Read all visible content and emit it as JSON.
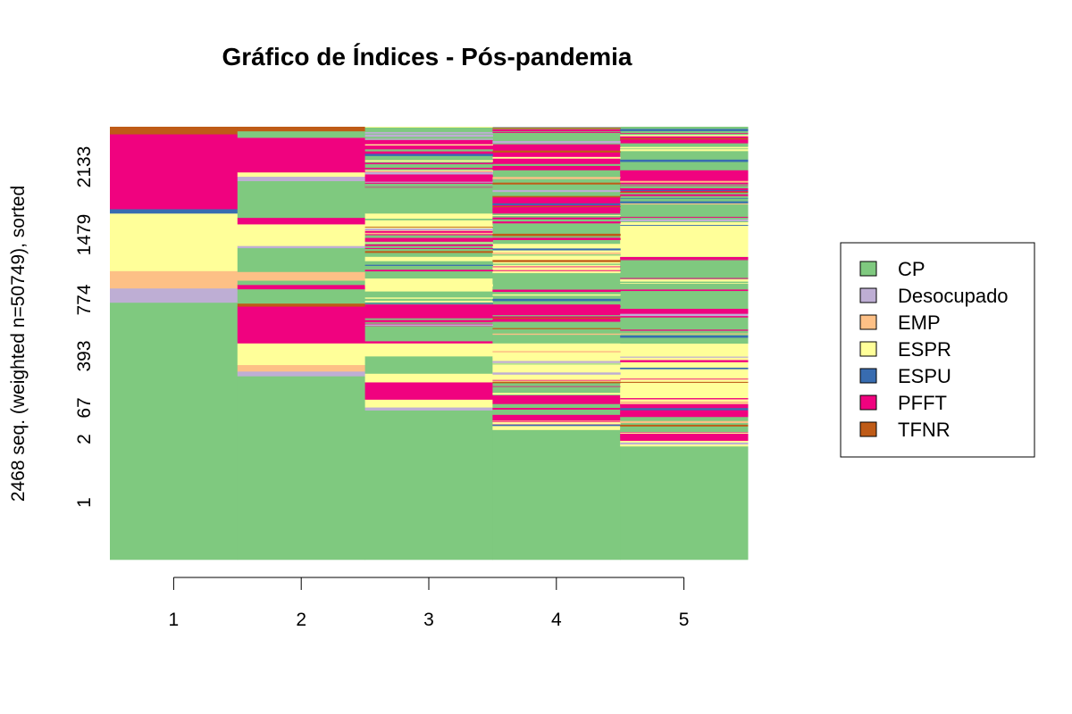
{
  "chart_data": {
    "type": "sequence-index",
    "title": "Gráfico de Índices - Pós-pandemia",
    "ylabel": "2468 seq. (weighted n=50749), sorted",
    "xlabel": "",
    "x_ticks": [
      "1",
      "2",
      "3",
      "4",
      "5"
    ],
    "y_ticks": [
      "1",
      "2",
      "67",
      "393",
      "774",
      "1479",
      "2133"
    ],
    "legend": [
      {
        "name": "CP",
        "color": "#7FC97F"
      },
      {
        "name": "Desocupado",
        "color": "#BEAED4"
      },
      {
        "name": "EMP",
        "color": "#FDC086"
      },
      {
        "name": "ESPR",
        "color": "#FFFF99"
      },
      {
        "name": "ESPU",
        "color": "#386CB0"
      },
      {
        "name": "PFFT",
        "color": "#F0027F"
      },
      {
        "name": "TFNR",
        "color": "#BF5B17"
      }
    ],
    "legend_position": "right",
    "columns": [
      {
        "time": "1",
        "segments": [
          {
            "state": "CP",
            "from": 0,
            "to": 0.594
          },
          {
            "state": "Desocupado",
            "from": 0.594,
            "to": 0.627
          },
          {
            "state": "EMP",
            "from": 0.627,
            "to": 0.667
          },
          {
            "state": "ESPR",
            "from": 0.667,
            "to": 0.8
          },
          {
            "state": "ESPU",
            "from": 0.8,
            "to": 0.81
          },
          {
            "state": "PFFT",
            "from": 0.81,
            "to": 0.983
          },
          {
            "state": "TFNR",
            "from": 0.983,
            "to": 1
          }
        ]
      },
      {
        "time": "2",
        "segments": [
          {
            "state": "CP",
            "from": 0,
            "to": 0.424
          },
          {
            "state": "Desocupado",
            "from": 0.424,
            "to": 0.435
          },
          {
            "state": "EMP",
            "from": 0.435,
            "to": 0.45
          },
          {
            "state": "ESPR",
            "from": 0.45,
            "to": 0.5
          },
          {
            "state": "PFFT",
            "from": 0.5,
            "to": 0.585
          },
          {
            "state": "TFNR",
            "from": 0.585,
            "to": 0.592
          },
          {
            "state": "CP",
            "from": 0.592,
            "to": 0.625
          },
          {
            "state": "PFFT",
            "from": 0.625,
            "to": 0.635
          },
          {
            "state": "CP",
            "from": 0.635,
            "to": 0.645
          },
          {
            "state": "EMP",
            "from": 0.645,
            "to": 0.665
          },
          {
            "state": "CP",
            "from": 0.665,
            "to": 0.72
          },
          {
            "state": "Desocupado",
            "from": 0.72,
            "to": 0.725
          },
          {
            "state": "ESPR",
            "from": 0.725,
            "to": 0.775
          },
          {
            "state": "PFFT",
            "from": 0.775,
            "to": 0.79
          },
          {
            "state": "CP",
            "from": 0.79,
            "to": 0.875
          },
          {
            "state": "Desocupado",
            "from": 0.875,
            "to": 0.885
          },
          {
            "state": "ESPR",
            "from": 0.885,
            "to": 0.895
          },
          {
            "state": "PFFT",
            "from": 0.895,
            "to": 0.975
          },
          {
            "state": "CP",
            "from": 0.975,
            "to": 0.99
          },
          {
            "state": "TFNR",
            "from": 0.99,
            "to": 1
          }
        ]
      },
      {
        "time": "3",
        "segments": [
          {
            "state": "CP",
            "from": 0,
            "to": 0.345
          },
          {
            "state": "Desocupado",
            "from": 0.345,
            "to": 0.352
          },
          {
            "state": "ESPR",
            "from": 0.352,
            "to": 0.37
          },
          {
            "state": "PFFT",
            "from": 0.37,
            "to": 0.41
          },
          {
            "state": "ESPR",
            "from": 0.41,
            "to": 0.43
          },
          {
            "state": "CP",
            "from": 0.43,
            "to": 0.47
          },
          {
            "state": "ESPR",
            "from": 0.47,
            "to": 0.5
          },
          {
            "state": "PFFT",
            "from": 0.5,
            "to": 0.505
          },
          {
            "state": "CP",
            "from": 0.505,
            "to": 0.54
          },
          {
            "state": "PFFT",
            "from": 0.54,
            "to": 0.59
          },
          {
            "state": "CP",
            "from": 0.59,
            "to": 0.62
          },
          {
            "state": "ESPR",
            "from": 0.62,
            "to": 0.65
          },
          {
            "state": "CP",
            "from": 0.65,
            "to": 0.69
          },
          {
            "state": "ESPR",
            "from": 0.69,
            "to": 0.7
          },
          {
            "state": "CP",
            "from": 0.7,
            "to": 0.75
          },
          {
            "state": "PFFT",
            "from": 0.75,
            "to": 0.76
          },
          {
            "state": "ESPR",
            "from": 0.76,
            "to": 0.8
          },
          {
            "state": "CP",
            "from": 0.8,
            "to": 0.86
          },
          {
            "state": "PFFT",
            "from": 0.86,
            "to": 0.9
          },
          {
            "state": "CP",
            "from": 0.9,
            "to": 0.935
          },
          {
            "state": "PFFT",
            "from": 0.935,
            "to": 0.97
          },
          {
            "state": "CP",
            "from": 0.97,
            "to": 1
          }
        ]
      },
      {
        "time": "4",
        "segments": [
          {
            "state": "CP",
            "from": 0,
            "to": 0.3
          },
          {
            "state": "ESPR",
            "from": 0.3,
            "to": 0.31
          },
          {
            "state": "PFFT",
            "from": 0.31,
            "to": 0.335
          },
          {
            "state": "CP",
            "from": 0.335,
            "to": 0.36
          },
          {
            "state": "PFFT",
            "from": 0.36,
            "to": 0.38
          },
          {
            "state": "CP",
            "from": 0.38,
            "to": 0.41
          },
          {
            "state": "ESPR",
            "from": 0.41,
            "to": 0.5
          },
          {
            "state": "CP",
            "from": 0.5,
            "to": 0.55
          },
          {
            "state": "PFFT",
            "from": 0.55,
            "to": 0.59
          },
          {
            "state": "CP",
            "from": 0.59,
            "to": 0.66
          },
          {
            "state": "ESPR",
            "from": 0.66,
            "to": 0.73
          },
          {
            "state": "CP",
            "from": 0.73,
            "to": 0.8
          },
          {
            "state": "PFFT",
            "from": 0.8,
            "to": 0.84
          },
          {
            "state": "CP",
            "from": 0.84,
            "to": 0.9
          },
          {
            "state": "PFFT",
            "from": 0.9,
            "to": 0.96
          },
          {
            "state": "CP",
            "from": 0.96,
            "to": 1
          }
        ]
      },
      {
        "time": "5",
        "segments": [
          {
            "state": "CP",
            "from": 0,
            "to": 0.262
          },
          {
            "state": "ESPR",
            "from": 0.262,
            "to": 0.275
          },
          {
            "state": "PFFT",
            "from": 0.275,
            "to": 0.295
          },
          {
            "state": "CP",
            "from": 0.295,
            "to": 0.33
          },
          {
            "state": "PFFT",
            "from": 0.33,
            "to": 0.36
          },
          {
            "state": "ESPR",
            "from": 0.36,
            "to": 0.5
          },
          {
            "state": "CP",
            "from": 0.5,
            "to": 0.56
          },
          {
            "state": "PFFT",
            "from": 0.56,
            "to": 0.58
          },
          {
            "state": "CP",
            "from": 0.58,
            "to": 0.7
          },
          {
            "state": "ESPR",
            "from": 0.7,
            "to": 0.78
          },
          {
            "state": "CP",
            "from": 0.78,
            "to": 0.85
          },
          {
            "state": "PFFT",
            "from": 0.85,
            "to": 0.9
          },
          {
            "state": "CP",
            "from": 0.9,
            "to": 0.96
          },
          {
            "state": "PFFT",
            "from": 0.96,
            "to": 0.98
          },
          {
            "state": "CP",
            "from": 0.98,
            "to": 1
          }
        ]
      }
    ],
    "stripe_mix": {
      "col3": {
        "from": 0.54,
        "states": [
          "PFFT",
          "ESPR",
          "CP",
          "Desocupado",
          "EMP",
          "TFNR",
          "ESPU"
        ]
      },
      "col4": {
        "from": 0.3,
        "states": [
          "PFFT",
          "ESPR",
          "CP",
          "EMP",
          "Desocupado",
          "ESPU",
          "TFNR"
        ]
      },
      "col5": {
        "from": 0.262,
        "states": [
          "PFFT",
          "ESPR",
          "CP",
          "EMP",
          "Desocupado",
          "ESPU",
          "TFNR"
        ]
      }
    }
  }
}
